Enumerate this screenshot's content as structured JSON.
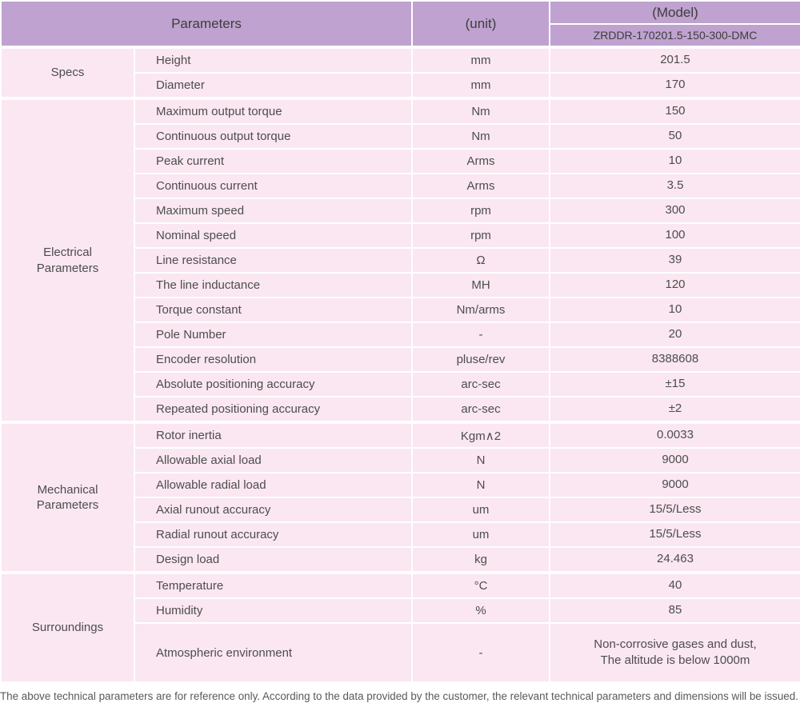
{
  "colors": {
    "header_bg": "#bfa2cf",
    "row_bg": "#fae7f1",
    "divider": "#ffffff",
    "text": "#4d4d4d"
  },
  "header": {
    "parameters_label": "Parameters",
    "unit_label": "(unit)",
    "model_label": "(Model)",
    "model_value": "ZRDDR-170201.5-150-300-DMC"
  },
  "sections": [
    {
      "label": "Specs",
      "rows": [
        {
          "parameter": "Height",
          "unit": "mm",
          "value": "201.5"
        },
        {
          "parameter": "Diameter",
          "unit": "mm",
          "value": "170"
        }
      ]
    },
    {
      "label": "Electrical Parameters",
      "rows": [
        {
          "parameter": "Maximum output torque",
          "unit": "Nm",
          "value": "150"
        },
        {
          "parameter": "Continuous output torque",
          "unit": "Nm",
          "value": "50"
        },
        {
          "parameter": "Peak current",
          "unit": "Arms",
          "value": "10"
        },
        {
          "parameter": "Continuous current",
          "unit": "Arms",
          "value": "3.5"
        },
        {
          "parameter": "Maximum speed",
          "unit": "rpm",
          "value": "300"
        },
        {
          "parameter": "Nominal speed",
          "unit": "rpm",
          "value": "100"
        },
        {
          "parameter": "Line resistance",
          "unit": "Ω",
          "value": "39"
        },
        {
          "parameter": "The line inductance",
          "unit": "MH",
          "value": "120"
        },
        {
          "parameter": "Torque constant",
          "unit": "Nm/arms",
          "value": "10"
        },
        {
          "parameter": "Pole Number",
          "unit": "-",
          "value": "20"
        },
        {
          "parameter": "Encoder resolution",
          "unit": "pluse/rev",
          "value": "8388608"
        },
        {
          "parameter": "Absolute positioning accuracy",
          "unit": "arc-sec",
          "value": "±15"
        },
        {
          "parameter": "Repeated positioning accuracy",
          "unit": "arc-sec",
          "value": "±2"
        }
      ]
    },
    {
      "label": "Mechanical Parameters",
      "rows": [
        {
          "parameter": "Rotor inertia",
          "unit": "Kgm∧2",
          "value": "0.0033"
        },
        {
          "parameter": "Allowable axial load",
          "unit": "N",
          "value": "9000"
        },
        {
          "parameter": "Allowable radial load",
          "unit": "N",
          "value": "9000"
        },
        {
          "parameter": "Axial runout accuracy",
          "unit": "um",
          "value": "15/5/Less"
        },
        {
          "parameter": "Radial runout accuracy",
          "unit": "um",
          "value": "15/5/Less"
        },
        {
          "parameter": "Design load",
          "unit": "kg",
          "value": "24.463"
        }
      ]
    },
    {
      "label": "Surroundings",
      "rows": [
        {
          "parameter": "Temperature",
          "unit": "°C",
          "value": "40"
        },
        {
          "parameter": "Humidity",
          "unit": "%",
          "value": "85"
        },
        {
          "parameter": "Atmospheric environment",
          "unit": "-",
          "value": "Non-corrosive gases and dust,\nThe altitude is below 1000m",
          "tall": true
        }
      ]
    }
  ],
  "footer_note": "The above technical parameters are for reference only. According to the data provided by the customer, the relevant technical parameters and dimensions will be issued."
}
